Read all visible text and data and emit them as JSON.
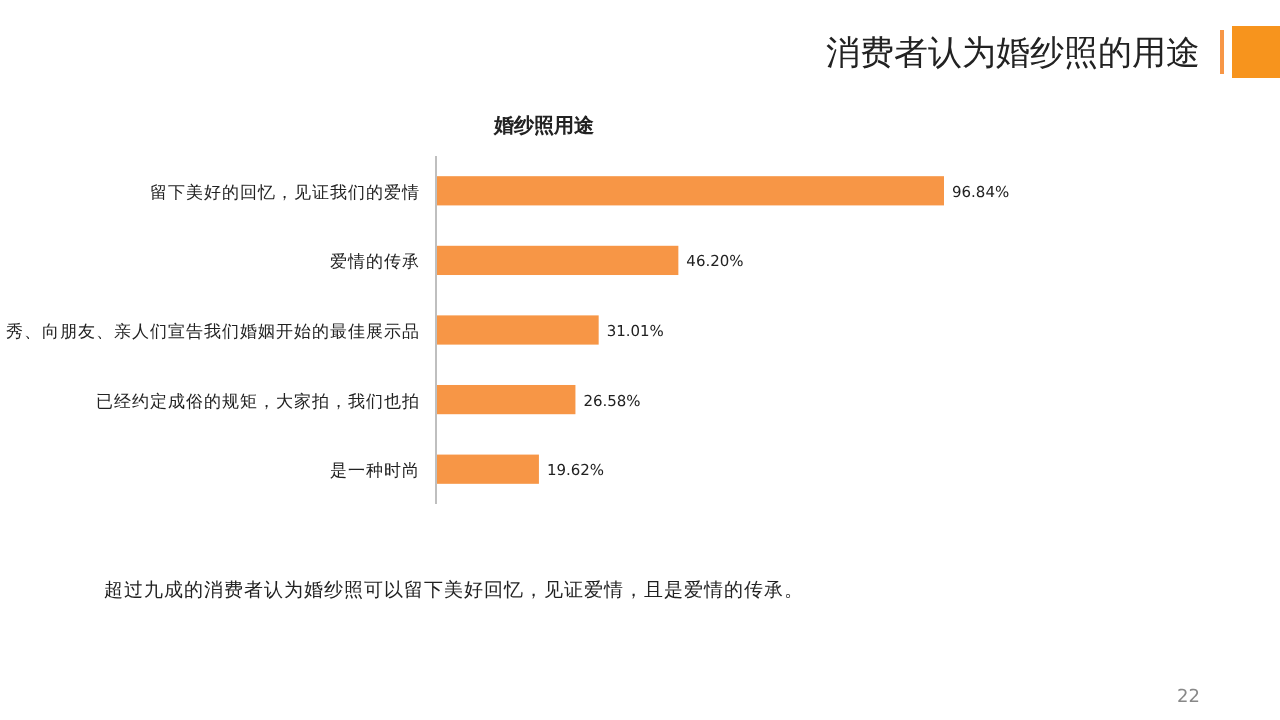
{
  "chart_data": {
    "type": "bar",
    "orientation": "horizontal",
    "title": "消费者认为婚纱照的用途",
    "subtitle": "婚纱照用途",
    "categories": [
      "留下美好的回忆，见证我们的爱情",
      "爱情的传承",
      "秀、向朋友、亲人们宣告我们婚姻开始的最佳展示品",
      "已经约定成俗的规矩，大家拍，我们也拍",
      "是一种时尚"
    ],
    "values": [
      96.84,
      46.2,
      31.01,
      26.58,
      19.62
    ],
    "value_labels": [
      "96.84%",
      "46.20%",
      "31.01%",
      "26.58%",
      "19.62%"
    ],
    "color": "#f79646",
    "annotations": [
      "超过九成的消费者认为婚纱照可以留下美好回忆，见证爱情，且是爱情的传承。",
      "22"
    ]
  }
}
